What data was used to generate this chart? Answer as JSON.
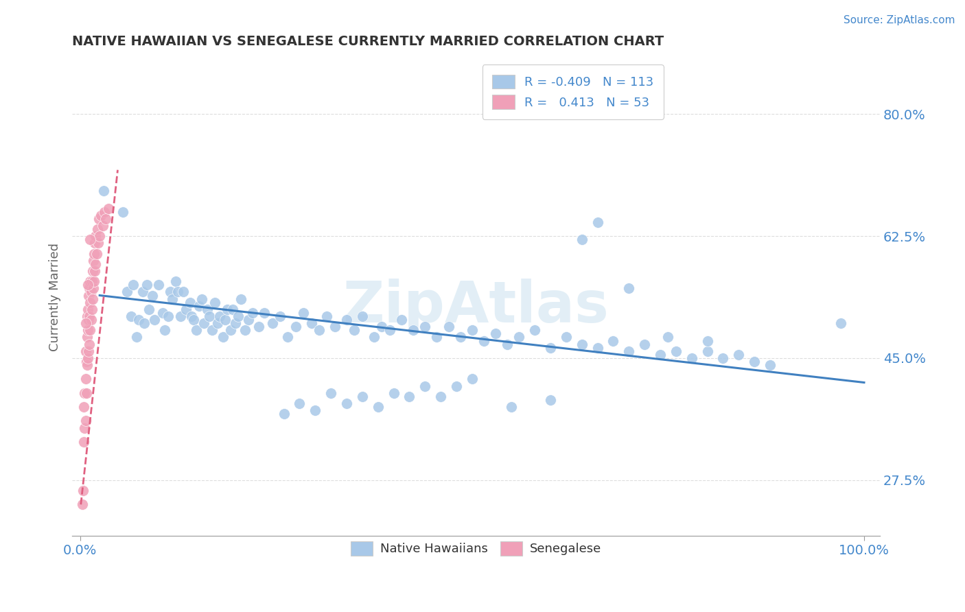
{
  "title": "NATIVE HAWAIIAN VS SENEGALESE CURRENTLY MARRIED CORRELATION CHART",
  "source_text": "Source: ZipAtlas.com",
  "ylabel": "Currently Married",
  "xlim": [
    -0.01,
    1.02
  ],
  "ylim": [
    0.195,
    0.88
  ],
  "yticks": [
    0.275,
    0.45,
    0.625,
    0.8
  ],
  "ytick_labels": [
    "27.5%",
    "45.0%",
    "62.5%",
    "80.0%"
  ],
  "xticks": [
    0.0,
    1.0
  ],
  "xtick_labels": [
    "0.0%",
    "100.0%"
  ],
  "legend_bottom": [
    "Native Hawaiians",
    "Senegalese"
  ],
  "blue_color": "#a8c8e8",
  "pink_color": "#f0a0b8",
  "blue_line_color": "#4080c0",
  "pink_line_color": "#e06080",
  "grid_color": "#dddddd",
  "watermark_color": "#d0e4f0",
  "blue_scatter_x": [
    0.03,
    0.055,
    0.06,
    0.065,
    0.068,
    0.072,
    0.075,
    0.08,
    0.082,
    0.085,
    0.088,
    0.092,
    0.095,
    0.1,
    0.105,
    0.108,
    0.112,
    0.115,
    0.118,
    0.122,
    0.125,
    0.128,
    0.132,
    0.135,
    0.14,
    0.142,
    0.145,
    0.148,
    0.152,
    0.155,
    0.158,
    0.162,
    0.165,
    0.168,
    0.172,
    0.175,
    0.178,
    0.182,
    0.185,
    0.188,
    0.192,
    0.195,
    0.198,
    0.202,
    0.205,
    0.21,
    0.215,
    0.22,
    0.228,
    0.235,
    0.245,
    0.255,
    0.265,
    0.275,
    0.285,
    0.295,
    0.305,
    0.315,
    0.325,
    0.34,
    0.35,
    0.36,
    0.375,
    0.385,
    0.395,
    0.41,
    0.425,
    0.44,
    0.455,
    0.47,
    0.485,
    0.5,
    0.515,
    0.53,
    0.545,
    0.56,
    0.58,
    0.6,
    0.62,
    0.64,
    0.66,
    0.68,
    0.7,
    0.72,
    0.74,
    0.76,
    0.78,
    0.8,
    0.82,
    0.84,
    0.86,
    0.88,
    0.64,
    0.66,
    0.7,
    0.75,
    0.8,
    0.6,
    0.55,
    0.5,
    0.48,
    0.46,
    0.44,
    0.42,
    0.4,
    0.38,
    0.36,
    0.34,
    0.32,
    0.3,
    0.28,
    0.26,
    0.97
  ],
  "blue_scatter_y": [
    0.69,
    0.66,
    0.545,
    0.51,
    0.555,
    0.48,
    0.505,
    0.545,
    0.5,
    0.555,
    0.52,
    0.54,
    0.505,
    0.555,
    0.515,
    0.49,
    0.51,
    0.545,
    0.535,
    0.56,
    0.545,
    0.51,
    0.545,
    0.52,
    0.53,
    0.51,
    0.505,
    0.49,
    0.525,
    0.535,
    0.5,
    0.52,
    0.51,
    0.49,
    0.53,
    0.5,
    0.51,
    0.48,
    0.505,
    0.52,
    0.49,
    0.52,
    0.5,
    0.51,
    0.535,
    0.49,
    0.505,
    0.515,
    0.495,
    0.515,
    0.5,
    0.51,
    0.48,
    0.495,
    0.515,
    0.5,
    0.49,
    0.51,
    0.495,
    0.505,
    0.49,
    0.51,
    0.48,
    0.495,
    0.49,
    0.505,
    0.49,
    0.495,
    0.48,
    0.495,
    0.48,
    0.49,
    0.475,
    0.485,
    0.47,
    0.48,
    0.49,
    0.465,
    0.48,
    0.47,
    0.465,
    0.475,
    0.46,
    0.47,
    0.455,
    0.46,
    0.45,
    0.46,
    0.45,
    0.455,
    0.445,
    0.44,
    0.62,
    0.645,
    0.55,
    0.48,
    0.475,
    0.39,
    0.38,
    0.42,
    0.41,
    0.395,
    0.41,
    0.395,
    0.4,
    0.38,
    0.395,
    0.385,
    0.4,
    0.375,
    0.385,
    0.37,
    0.5
  ],
  "pink_scatter_x": [
    0.003,
    0.004,
    0.005,
    0.005,
    0.006,
    0.006,
    0.007,
    0.007,
    0.007,
    0.008,
    0.008,
    0.009,
    0.009,
    0.009,
    0.01,
    0.01,
    0.01,
    0.011,
    0.011,
    0.011,
    0.012,
    0.012,
    0.012,
    0.013,
    0.013,
    0.013,
    0.014,
    0.014,
    0.015,
    0.015,
    0.016,
    0.016,
    0.017,
    0.017,
    0.018,
    0.018,
    0.019,
    0.019,
    0.02,
    0.02,
    0.021,
    0.022,
    0.023,
    0.024,
    0.025,
    0.027,
    0.029,
    0.031,
    0.033,
    0.036,
    0.007,
    0.01,
    0.013
  ],
  "pink_scatter_y": [
    0.24,
    0.26,
    0.33,
    0.38,
    0.35,
    0.4,
    0.36,
    0.42,
    0.46,
    0.4,
    0.445,
    0.44,
    0.48,
    0.51,
    0.45,
    0.49,
    0.52,
    0.46,
    0.505,
    0.54,
    0.47,
    0.51,
    0.55,
    0.49,
    0.53,
    0.56,
    0.505,
    0.545,
    0.52,
    0.56,
    0.535,
    0.575,
    0.55,
    0.59,
    0.56,
    0.6,
    0.575,
    0.615,
    0.585,
    0.625,
    0.6,
    0.635,
    0.615,
    0.65,
    0.625,
    0.655,
    0.64,
    0.66,
    0.65,
    0.665,
    0.5,
    0.555,
    0.62
  ],
  "blue_trend_x": [
    0.025,
    1.0
  ],
  "blue_trend_y": [
    0.54,
    0.415
  ],
  "pink_trend_x": [
    0.001,
    0.048
  ],
  "pink_trend_y": [
    0.24,
    0.72
  ]
}
